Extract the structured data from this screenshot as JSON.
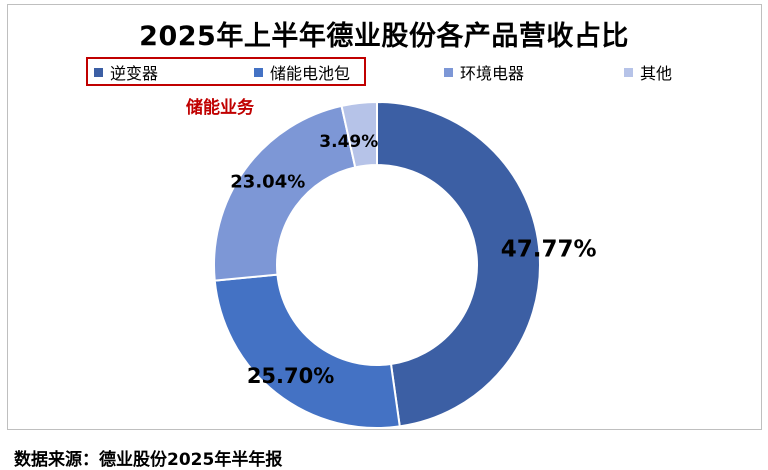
{
  "chart_data": {
    "type": "donut",
    "title": "2025年上半年德业股份各产品营收占比",
    "categories": [
      "逆变器",
      "储能电池包",
      "环境电器",
      "其他"
    ],
    "values": [
      47.77,
      25.7,
      23.04,
      3.49
    ],
    "data_labels": [
      "47.77%",
      "25.70%",
      "23.04%",
      "3.49%"
    ],
    "colors": [
      "#3c5fa4",
      "#4472c4",
      "#7d97d6",
      "#b6c3e8"
    ],
    "legend_position": "top",
    "highlight": {
      "items": [
        "逆变器",
        "储能电池包"
      ],
      "label": "储能业务",
      "color": "#c00000"
    }
  },
  "source": "数据来源：德业股份2025年半年报"
}
